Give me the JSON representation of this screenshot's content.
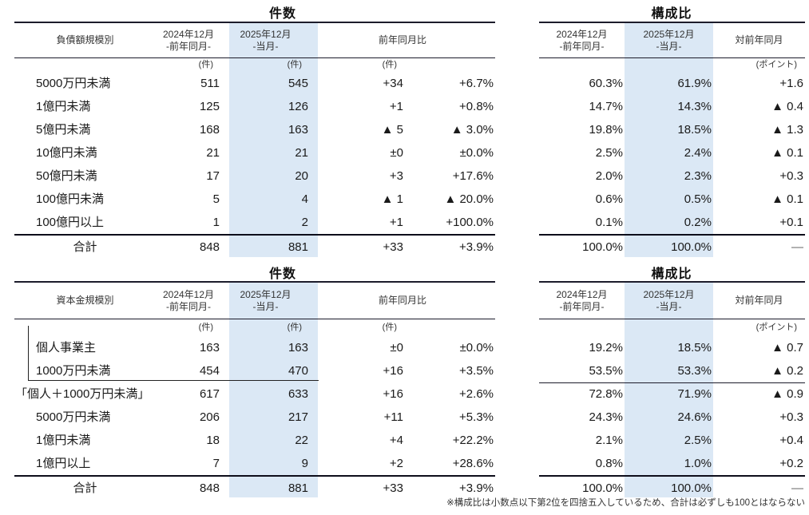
{
  "colors": {
    "highlight": "#dbe8f5",
    "rule": "#1c1c2b",
    "text": "#1a1a1a",
    "muted": "#666666"
  },
  "footnote": "※構成比は小数点以下第2位を四捨五入しているため、合計は必ずしも100とはならない",
  "sections": [
    {
      "count": {
        "title": "件数",
        "row_header": "負債額規模別",
        "cols": {
          "prev": "2024年12月",
          "prev_sub": "-前年同月-",
          "curr": "2025年12月",
          "curr_sub": "-当月-",
          "change": "前年同月比"
        },
        "units": {
          "prev": "(件)",
          "curr": "(件)",
          "change": "(件)"
        },
        "rows": [
          {
            "label": "5000万円未満",
            "prev": "511",
            "curr": "545",
            "diff": "+34",
            "pct": "+6.7%"
          },
          {
            "label": "1億円未満",
            "prev": "125",
            "curr": "126",
            "diff": "+1",
            "pct": "+0.8%"
          },
          {
            "label": "5億円未満",
            "prev": "168",
            "curr": "163",
            "diff": "▲ 5",
            "pct": "▲ 3.0%"
          },
          {
            "label": "10億円未満",
            "prev": "21",
            "curr": "21",
            "diff": "±0",
            "pct": "±0.0%"
          },
          {
            "label": "50億円未満",
            "prev": "17",
            "curr": "20",
            "diff": "+3",
            "pct": "+17.6%"
          },
          {
            "label": "100億円未満",
            "prev": "5",
            "curr": "4",
            "diff": "▲ 1",
            "pct": "▲ 20.0%"
          },
          {
            "label": "100億円以上",
            "prev": "1",
            "curr": "2",
            "diff": "+1",
            "pct": "+100.0%"
          }
        ],
        "total": {
          "label": "合計",
          "prev": "848",
          "curr": "881",
          "diff": "+33",
          "pct": "+3.9%"
        }
      },
      "ratio": {
        "title": "構成比",
        "cols": {
          "prev": "2024年12月",
          "prev_sub": "-前年同月-",
          "curr": "2025年12月",
          "curr_sub": "-当月-",
          "change": "対前年同月"
        },
        "units": {
          "change": "(ポイント)"
        },
        "rows": [
          {
            "prev": "60.3%",
            "curr": "61.9%",
            "diff": "+1.6"
          },
          {
            "prev": "14.7%",
            "curr": "14.3%",
            "diff": "▲ 0.4"
          },
          {
            "prev": "19.8%",
            "curr": "18.5%",
            "diff": "▲ 1.3"
          },
          {
            "prev": "2.5%",
            "curr": "2.4%",
            "diff": "▲ 0.1"
          },
          {
            "prev": "2.0%",
            "curr": "2.3%",
            "diff": "+0.3"
          },
          {
            "prev": "0.6%",
            "curr": "0.5%",
            "diff": "▲ 0.1"
          },
          {
            "prev": "0.1%",
            "curr": "0.2%",
            "diff": "+0.1"
          }
        ],
        "total": {
          "prev": "100.0%",
          "curr": "100.0%",
          "diff": "—"
        }
      }
    },
    {
      "count": {
        "title": "件数",
        "row_header": "資本金規模別",
        "cols": {
          "prev": "2024年12月",
          "prev_sub": "-前年同月-",
          "curr": "2025年12月",
          "curr_sub": "-当月-",
          "change": "前年同月比"
        },
        "units": {
          "prev": "(件)",
          "curr": "(件)",
          "change": "(件)"
        },
        "rows": [
          {
            "label": "個人事業主",
            "prev": "163",
            "curr": "163",
            "diff": "±0",
            "pct": "±0.0%"
          },
          {
            "label": "1000万円未満",
            "prev": "454",
            "curr": "470",
            "diff": "+16",
            "pct": "+3.5%"
          },
          {
            "label": "「個人＋1000万円未満」",
            "prev": "617",
            "curr": "633",
            "diff": "+16",
            "pct": "+2.6%",
            "flush": true
          },
          {
            "label": "5000万円未満",
            "prev": "206",
            "curr": "217",
            "diff": "+11",
            "pct": "+5.3%"
          },
          {
            "label": "1億円未満",
            "prev": "18",
            "curr": "22",
            "diff": "+4",
            "pct": "+22.2%"
          },
          {
            "label": "1億円以上",
            "prev": "7",
            "curr": "9",
            "diff": "+2",
            "pct": "+28.6%"
          }
        ],
        "total": {
          "label": "合計",
          "prev": "848",
          "curr": "881",
          "diff": "+33",
          "pct": "+3.9%"
        }
      },
      "ratio": {
        "title": "構成比",
        "cols": {
          "prev": "2024年12月",
          "prev_sub": "-前年同月-",
          "curr": "2025年12月",
          "curr_sub": "-当月-",
          "change": "対前年同月"
        },
        "units": {
          "change": "(ポイント)"
        },
        "rows": [
          {
            "prev": "19.2%",
            "curr": "18.5%",
            "diff": "▲ 0.7"
          },
          {
            "prev": "53.5%",
            "curr": "53.3%",
            "diff": "▲ 0.2"
          },
          {
            "prev": "72.8%",
            "curr": "71.9%",
            "diff": "▲ 0.9",
            "rule": true
          },
          {
            "prev": "24.3%",
            "curr": "24.6%",
            "diff": "+0.3"
          },
          {
            "prev": "2.1%",
            "curr": "2.5%",
            "diff": "+0.4"
          },
          {
            "prev": "0.8%",
            "curr": "1.0%",
            "diff": "+0.2"
          }
        ],
        "total": {
          "prev": "100.0%",
          "curr": "100.0%",
          "diff": "—"
        }
      }
    }
  ]
}
